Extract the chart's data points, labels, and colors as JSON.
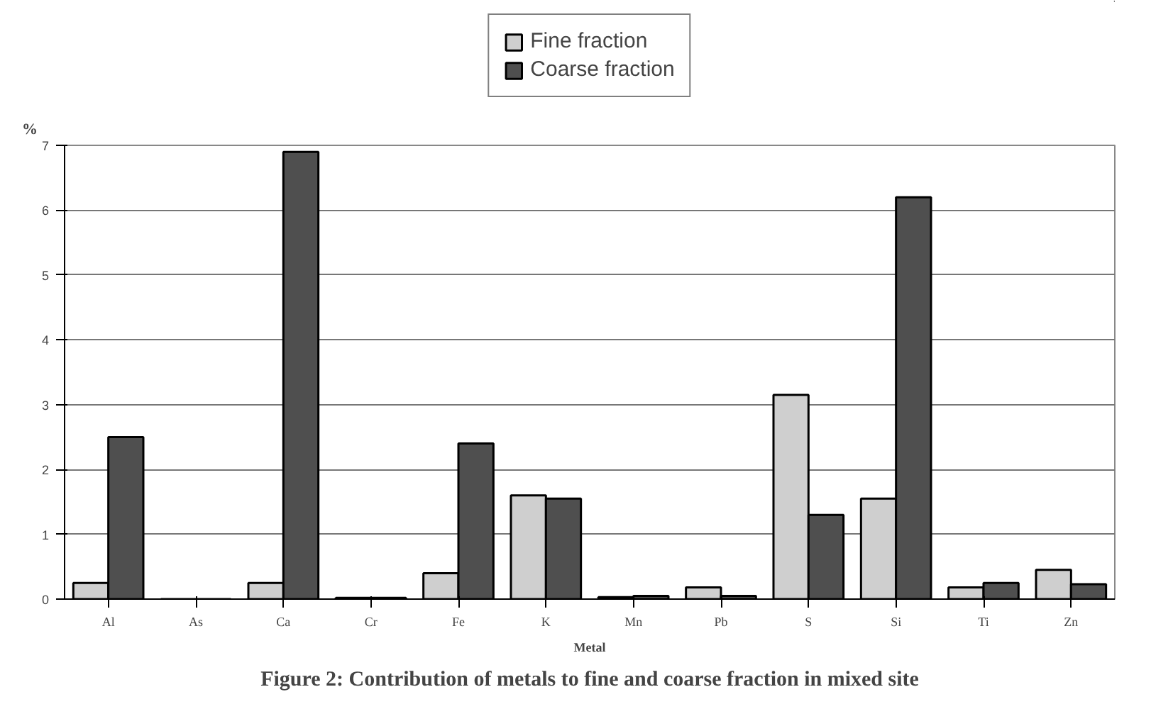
{
  "chart_data": {
    "type": "bar",
    "title": "Figure 2: Contribution of metals to fine and coarse fraction in mixed site",
    "xlabel": "Metal",
    "ylabel": "%",
    "categories": [
      "Al",
      "As",
      "Ca",
      "Cr",
      "Fe",
      "K",
      "Mn",
      "Pb",
      "S",
      "Si",
      "Ti",
      "Zn"
    ],
    "series": [
      {
        "name": "Fine fraction",
        "color": "#cfcfcf",
        "values": [
          0.25,
          null,
          0.25,
          0.02,
          0.4,
          1.6,
          0.03,
          0.18,
          3.15,
          1.55,
          0.18,
          0.45
        ]
      },
      {
        "name": "Coarse fraction",
        "color": "#4f4f4f",
        "values": [
          2.5,
          null,
          6.9,
          0.02,
          2.4,
          1.55,
          0.05,
          0.05,
          1.3,
          6.2,
          0.25,
          0.23
        ]
      }
    ],
    "ylim": [
      0,
      7
    ],
    "yticks": [
      0,
      1,
      2,
      3,
      4,
      5,
      6,
      7
    ],
    "grid": "y",
    "legend": "top"
  }
}
